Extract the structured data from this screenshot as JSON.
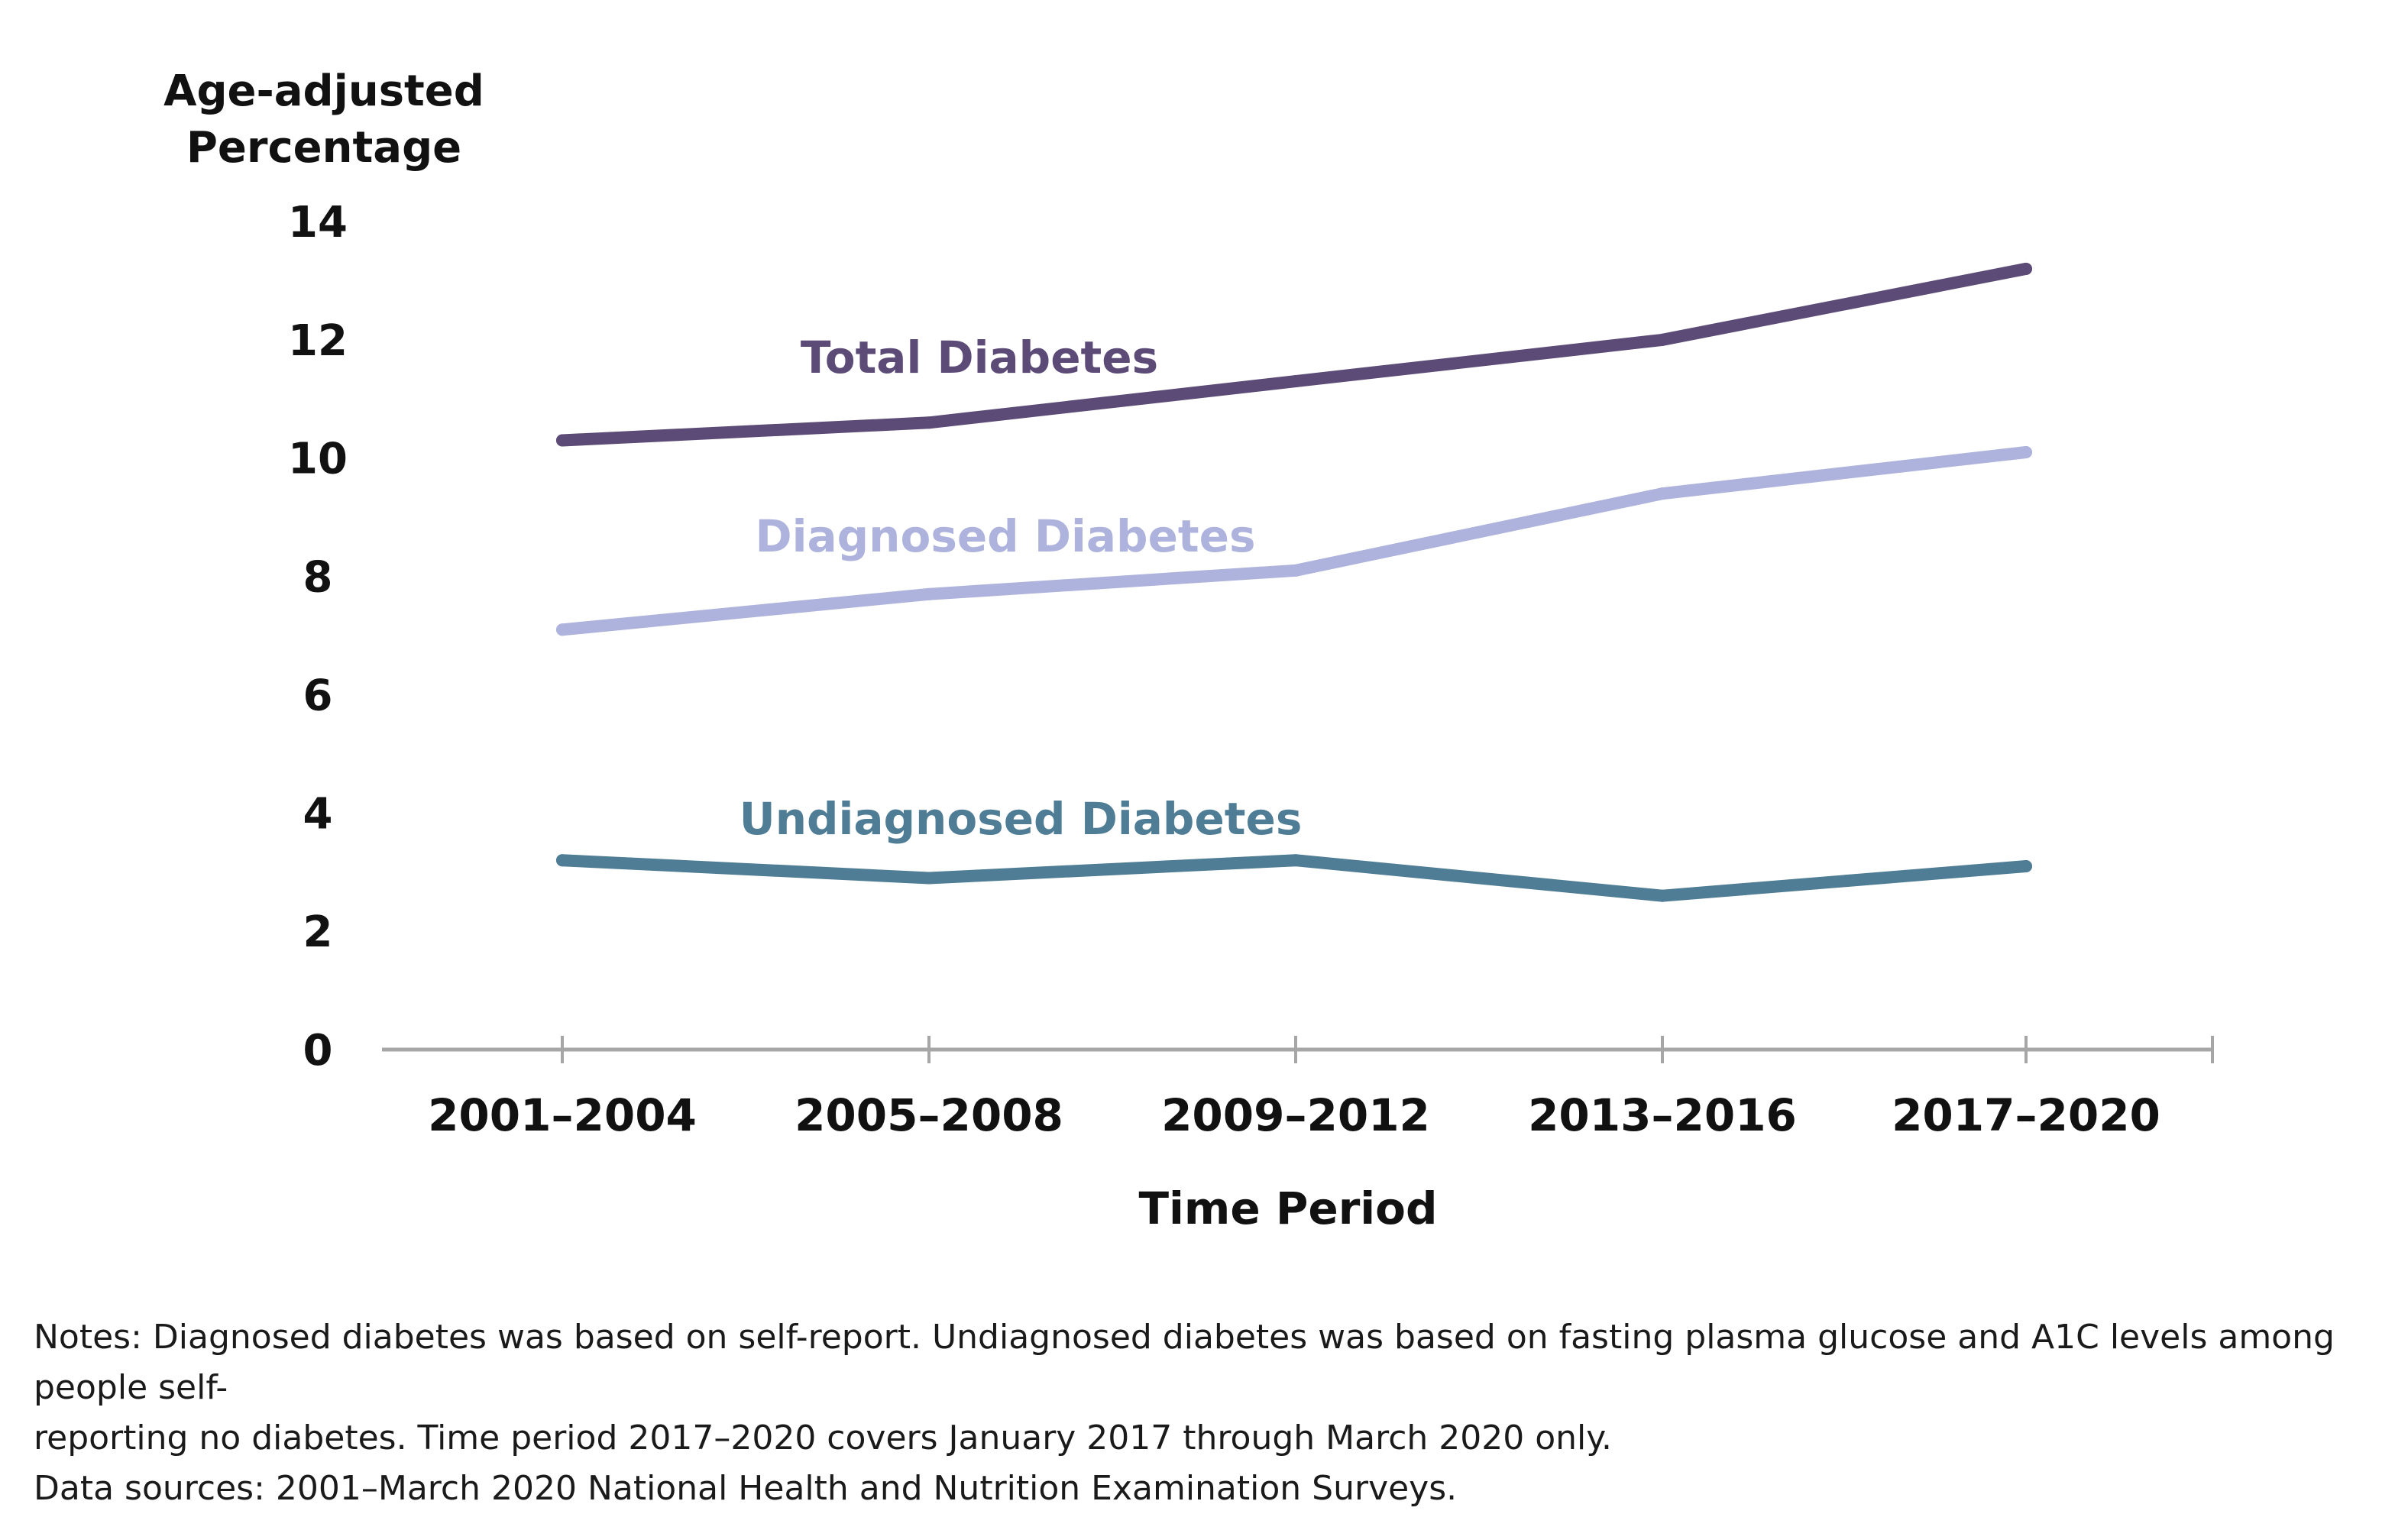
{
  "chart_data": {
    "type": "line",
    "ylabel": [
      "Age-adjusted",
      "Percentage"
    ],
    "xlabel": "Time Period",
    "categories": [
      "2001–2004",
      "2005–2008",
      "2009–2012",
      "2013–2016",
      "2017–2020"
    ],
    "yticks": [
      "0",
      "2",
      "4",
      "6",
      "8",
      "10",
      "12",
      "14"
    ],
    "ylim": [
      0,
      14
    ],
    "grid": false,
    "series": [
      {
        "name": "Total Diabetes",
        "values": [
          10.3,
          10.6,
          11.3,
          12.0,
          13.2
        ],
        "color": "#5c4b77"
      },
      {
        "name": "Diagnosed Diabetes",
        "values": [
          7.1,
          7.7,
          8.1,
          9.4,
          10.1
        ],
        "color": "#adb3dc"
      },
      {
        "name": "Undiagnosed Diabetes",
        "values": [
          3.2,
          2.9,
          3.2,
          2.6,
          3.1
        ],
        "color": "#4f7d96"
      }
    ]
  },
  "notes": {
    "line1": "Notes: Diagnosed diabetes was based on self-report. Undiagnosed diabetes was based on fasting plasma glucose and A1C levels among people self-",
    "line2": "reporting no diabetes. Time period 2017–2020 covers January 2017 through March 2020 only.",
    "line3": "Data sources: 2001–March 2020 National Health and Nutrition Examination Surveys."
  },
  "axis_color": "#a6a6a6"
}
